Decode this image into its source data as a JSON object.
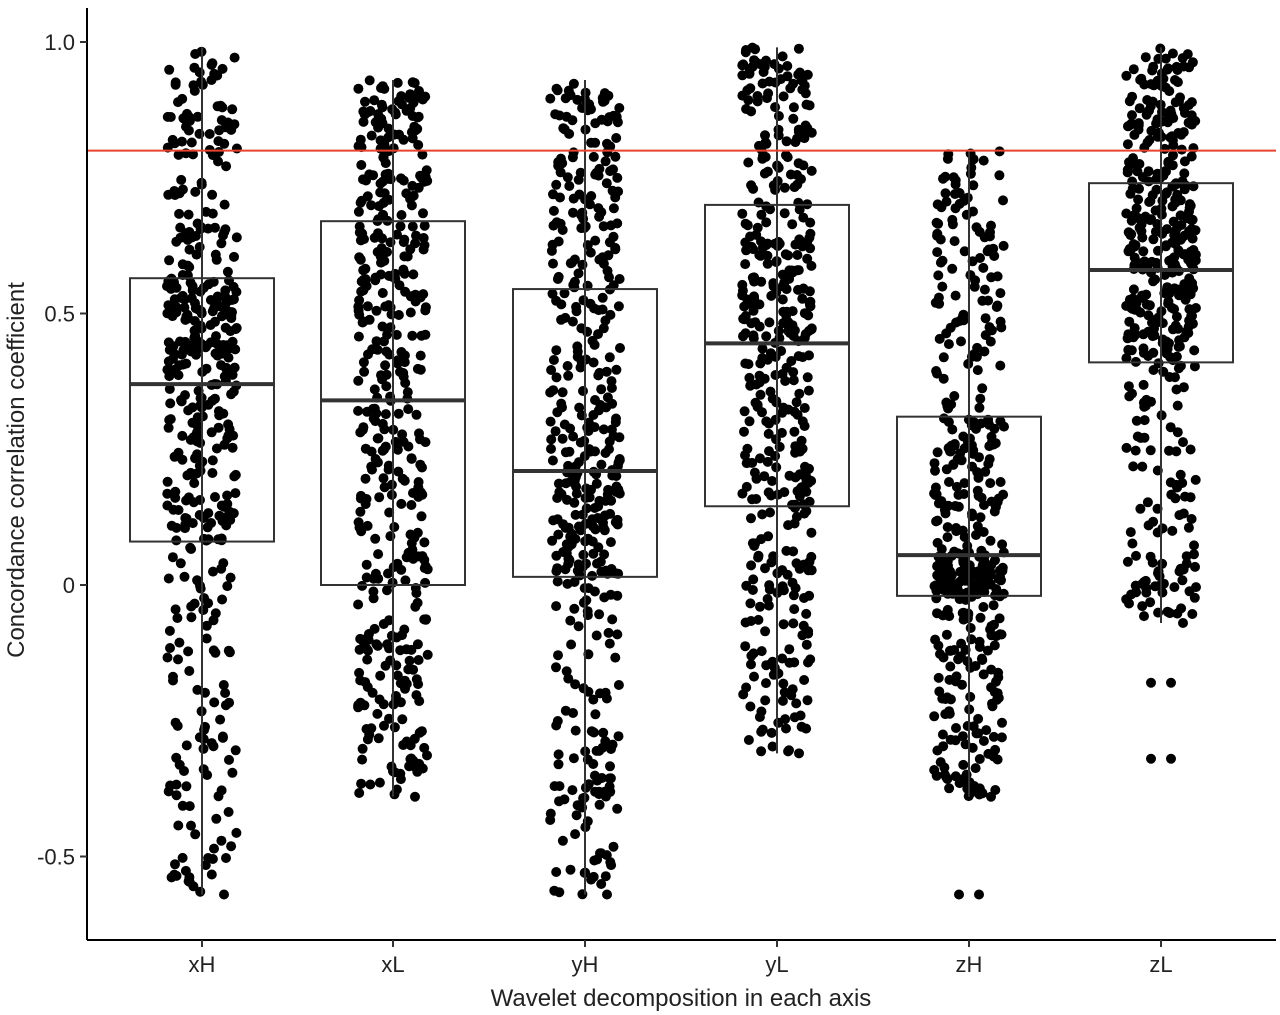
{
  "chart_data": {
    "type": "box",
    "title": "",
    "xlabel": "Wavelet decomposition in each axis",
    "ylabel": "Concordance correlation coefficient",
    "ylim": [
      -0.65,
      1.07
    ],
    "yticks": [
      -0.5,
      0,
      0.5,
      1.0
    ],
    "ytick_labels": [
      "-0.5",
      "0",
      "0.5",
      "1.0"
    ],
    "grid": false,
    "reference_line": {
      "y": 0.8,
      "color": "#e8432e"
    },
    "categories": [
      "xH",
      "xL",
      "yH",
      "yL",
      "zH",
      "zL"
    ],
    "boxes": [
      {
        "category": "xH",
        "min": -0.57,
        "q1": 0.08,
        "median": 0.37,
        "q3": 0.565,
        "max": 0.99,
        "n_points": 440,
        "outliers": []
      },
      {
        "category": "xL",
        "min": -0.39,
        "q1": 0.0,
        "median": 0.34,
        "q3": 0.67,
        "max": 0.93,
        "n_points": 440,
        "outliers": []
      },
      {
        "category": "yH",
        "min": -0.57,
        "q1": 0.015,
        "median": 0.21,
        "q3": 0.545,
        "max": 0.93,
        "n_points": 440,
        "outliers": []
      },
      {
        "category": "yL",
        "min": -0.31,
        "q1": 0.145,
        "median": 0.445,
        "q3": 0.7,
        "max": 0.99,
        "n_points": 440,
        "outliers": []
      },
      {
        "category": "zH",
        "min": -0.39,
        "q1": -0.02,
        "median": 0.055,
        "q3": 0.31,
        "max": 0.8,
        "n_points": 440,
        "outliers": [
          -0.57
        ]
      },
      {
        "category": "zL",
        "min": -0.07,
        "q1": 0.41,
        "median": 0.58,
        "q3": 0.74,
        "max": 0.99,
        "n_points": 440,
        "outliers": [
          -0.18,
          -0.32
        ]
      }
    ],
    "point_color": "#000000",
    "box_color": "#333333"
  }
}
